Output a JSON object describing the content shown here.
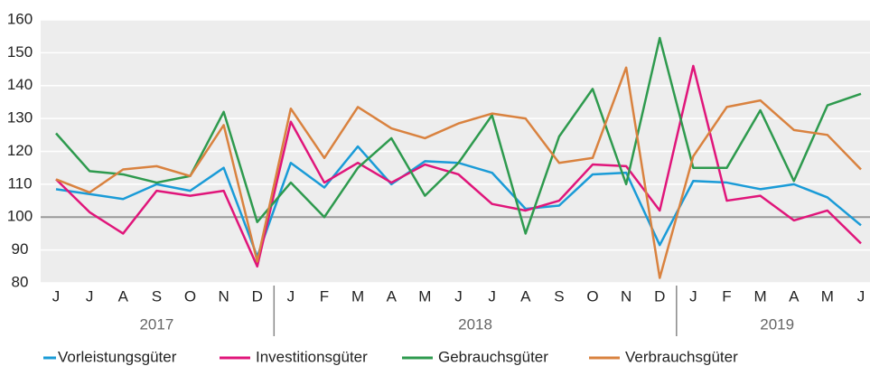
{
  "chart_data": {
    "type": "line",
    "categories": [
      "J",
      "J",
      "A",
      "S",
      "O",
      "N",
      "D",
      "J",
      "F",
      "M",
      "A",
      "M",
      "J",
      "J",
      "A",
      "S",
      "O",
      "N",
      "D",
      "J",
      "F",
      "M",
      "A",
      "M",
      "J"
    ],
    "x_groups": [
      {
        "label": "2017",
        "span": 7
      },
      {
        "label": "2018",
        "span": 12
      },
      {
        "label": "2019",
        "span": 6
      }
    ],
    "series": [
      {
        "name": "Vorleistungsgüter",
        "color": "#1a9bd7",
        "values": [
          108.5,
          107,
          105.5,
          110,
          108,
          115,
          88,
          116.5,
          109,
          121.5,
          110,
          117,
          116.5,
          113.5,
          102.5,
          103.5,
          113,
          113.5,
          91.5,
          111,
          110.5,
          108.5,
          110,
          106,
          97.5
        ]
      },
      {
        "name": "Investitionsgüter",
        "color": "#e0157a",
        "values": [
          111.5,
          101.5,
          95,
          108,
          106.5,
          108,
          85,
          129,
          110.5,
          116.5,
          110.5,
          116,
          113,
          104,
          102,
          105,
          116,
          115.5,
          102,
          146,
          105,
          106.5,
          99,
          102,
          92
        ]
      },
      {
        "name": "Gebrauchsgüter",
        "color": "#2e9a4e",
        "values": [
          125.5,
          114,
          113,
          110.5,
          112.5,
          132,
          98.5,
          110.5,
          100,
          115,
          124,
          106.5,
          116.5,
          131,
          95,
          124.5,
          139,
          110,
          154.5,
          115,
          115,
          132.5,
          111,
          134,
          137.5
        ]
      },
      {
        "name": "Verbrauchsgüter",
        "color": "#d9823f",
        "values": [
          111.5,
          107.5,
          114.5,
          115.5,
          112.5,
          128,
          86.5,
          133,
          118,
          133.5,
          127,
          124,
          128.5,
          131.5,
          130,
          116.5,
          118,
          145.5,
          81.5,
          118.5,
          133.5,
          135.5,
          126.5,
          125,
          114.5
        ]
      }
    ],
    "ylim": [
      80,
      160
    ],
    "yticks": [
      80,
      90,
      100,
      110,
      120,
      130,
      140,
      150,
      160
    ],
    "reference_line": 100,
    "grid": true
  }
}
